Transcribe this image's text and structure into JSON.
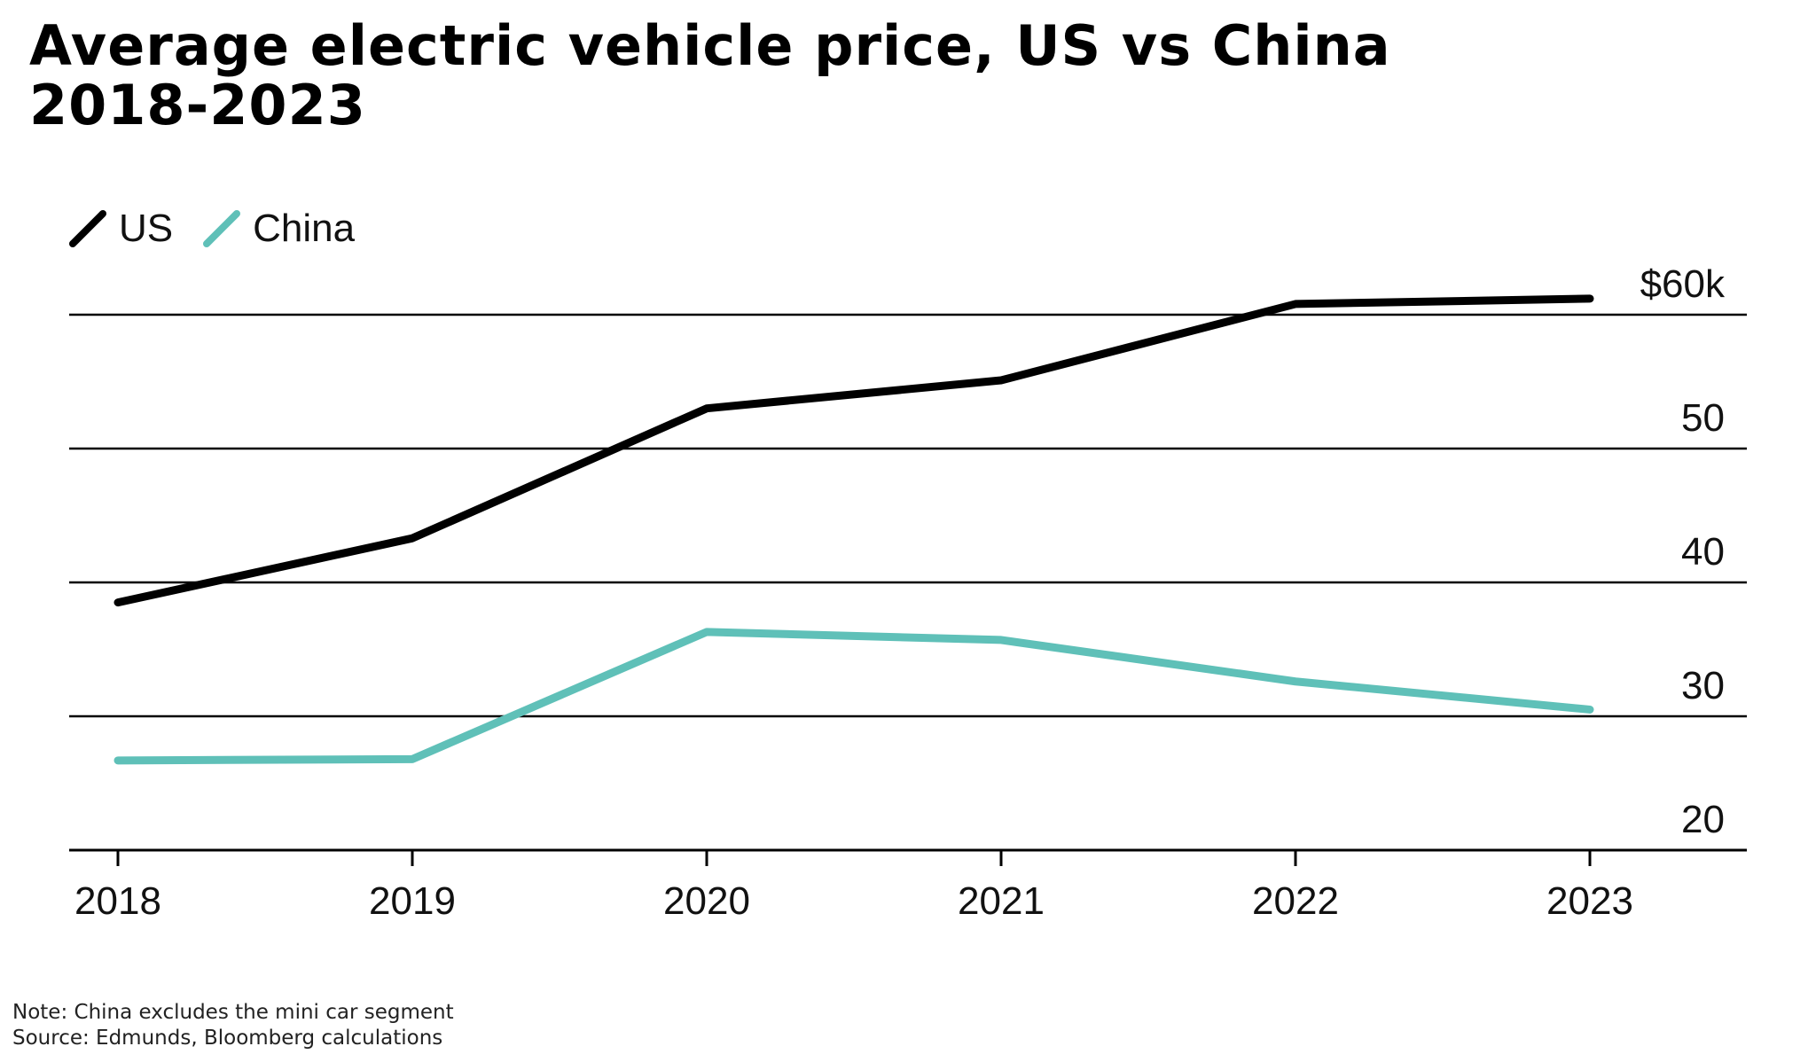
{
  "title_line1": "Average electric vehicle price, US vs China",
  "title_line2": "2018-2023",
  "note": "Note: China excludes the mini car segment",
  "source": "Source: Edmunds, Bloomberg calculations",
  "chart_data": {
    "type": "line",
    "title": "Average electric vehicle price, US vs China 2018-2023",
    "x": [
      "2018",
      "2019",
      "2020",
      "2021",
      "2022",
      "2023"
    ],
    "series": [
      {
        "name": "US",
        "color": "#000000",
        "values": [
          38.5,
          43.3,
          53.0,
          55.1,
          60.8,
          61.2
        ]
      },
      {
        "name": "China",
        "color": "#5fc0b8",
        "values": [
          26.7,
          26.8,
          36.3,
          35.7,
          32.6,
          30.5
        ]
      }
    ],
    "ylim": [
      20,
      60
    ],
    "yticks": [
      20,
      30,
      40,
      50,
      60
    ],
    "ytick_labels": [
      "20",
      "30",
      "40",
      "50",
      "$60k"
    ],
    "grid": true,
    "legend_position": "top-left",
    "xlabel": "",
    "ylabel": ""
  }
}
